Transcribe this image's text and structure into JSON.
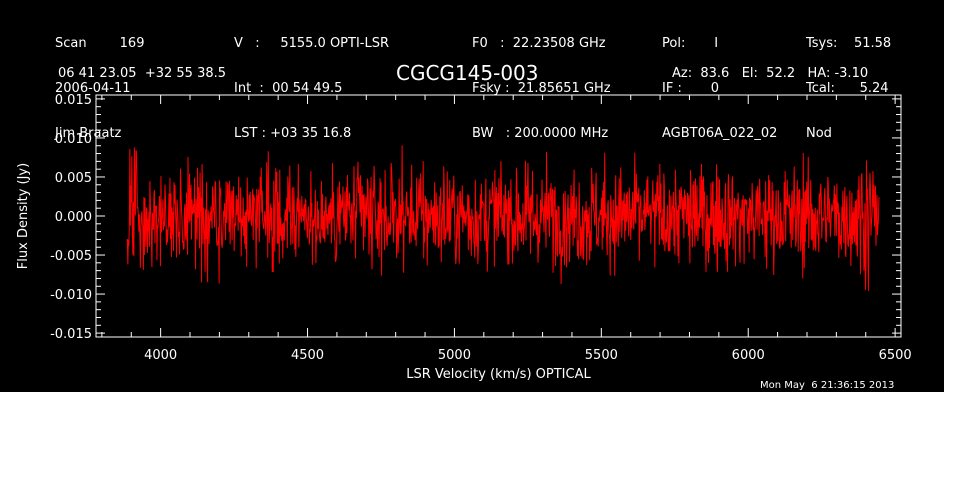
{
  "header": {
    "col1": [
      "Scan        169",
      "2006-04-11",
      "Jim Braatz"
    ],
    "col2": [
      "V   :     5155.0 OPTI-LSR",
      "Int  :  00 54 49.5",
      "LST : +03 35 16.8"
    ],
    "col3": [
      "F0   :  22.23508 GHz",
      "Fsky :  21.85651 GHz",
      "BW   : 200.0000 MHz"
    ],
    "col4": [
      "Pol:       I",
      "IF :       0",
      "AGBT06A_022_02"
    ],
    "col5": [
      "Tsys:    51.58",
      "Tcal:      5.24",
      "Nod"
    ],
    "coords": "06 41 23.05  +32 55 38.5",
    "source": "CGCG145-003",
    "pointing": "Az:  83.6   El:  52.2   HA: -3.10",
    "timestamp": "Mon May  6 21:36:15 2013"
  },
  "chart_data": {
    "type": "line",
    "title": "CGCG145-003",
    "xlabel": "LSR Velocity (km/s) OPTICAL",
    "ylabel": "Flux Density (Jy)",
    "xlim": [
      3780,
      6520
    ],
    "ylim": [
      -0.0155,
      0.0155
    ],
    "x_ticks": [
      "4000",
      "4500",
      "5000",
      "5500",
      "6000",
      "6500"
    ],
    "y_ticks": [
      "0.015",
      "0.010",
      "0.005",
      "0.000",
      "-0.005",
      "-0.010",
      "-0.015"
    ],
    "x_range": [
      3885,
      6445
    ],
    "noise_rms": 0.0032,
    "series": [
      {
        "color": "#ff0000"
      }
    ],
    "background": "#000000",
    "axis_color": "#ffffff",
    "grid": false
  }
}
